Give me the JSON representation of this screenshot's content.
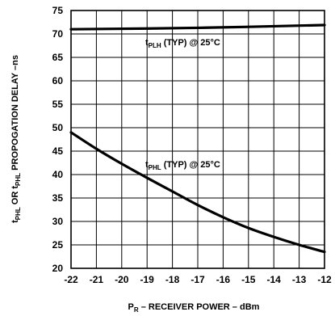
{
  "chart_data": {
    "type": "line",
    "xlim": [
      -22,
      -12
    ],
    "ylim": [
      20,
      75
    ],
    "x_ticks": [
      "-22",
      "-21",
      "-20",
      "-19",
      "-18",
      "-17",
      "-16",
      "-15",
      "-14",
      "-13",
      "-12"
    ],
    "y_ticks": [
      "20",
      "25",
      "30",
      "35",
      "40",
      "45",
      "50",
      "55",
      "60",
      "65",
      "70",
      "75"
    ],
    "grid": true,
    "xlabel": {
      "main_sub": "P",
      "sub": "R",
      "rest": " – RECEIVER POWER – dBm"
    },
    "ylabel": {
      "t1": "t",
      "s1": "PHL",
      "mid": " OR ",
      "t2": "t",
      "s2": "PHL",
      "rest": " PROPOGATION DELAY –ns"
    },
    "series": [
      {
        "label_t": "t",
        "label_sub": "PLH",
        "label_rest": " (TYP) @ 25°C",
        "x": [
          -22,
          -17,
          -12
        ],
        "y": [
          71,
          71.3,
          71.9
        ]
      },
      {
        "label_t": "t",
        "label_sub": "PHL",
        "label_rest": " (TYP) @ 25°C",
        "x": [
          -22,
          -21,
          -20,
          -19,
          -18,
          -17,
          -16,
          -15,
          -14,
          -13,
          -12
        ],
        "y": [
          49,
          45.5,
          42.3,
          39.3,
          36.4,
          33.5,
          30.9,
          28.6,
          26.7,
          25,
          23.5
        ]
      }
    ]
  }
}
